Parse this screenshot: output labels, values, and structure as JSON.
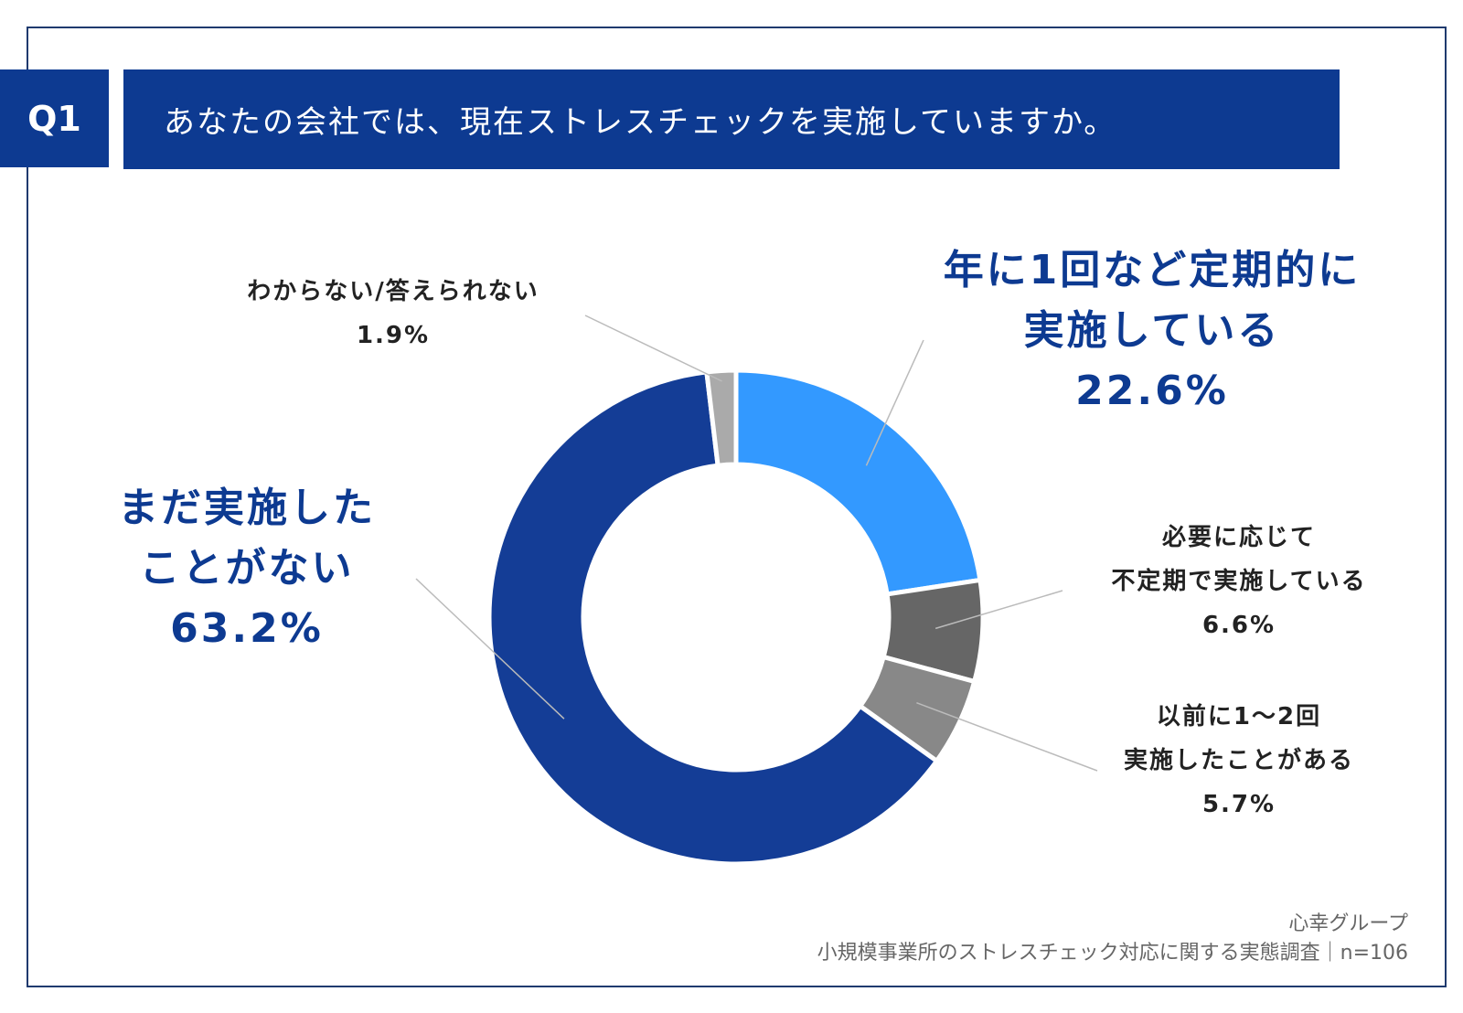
{
  "header": {
    "badge": "Q1",
    "question": "あなたの会社では、現在ストレスチェックを実施していますか。"
  },
  "chart_data": {
    "type": "pie",
    "donut": true,
    "slices": [
      {
        "label_lines": [
          "年に1回など定期的に",
          "実施している"
        ],
        "value": 22.6,
        "value_text": "22.6%",
        "color": "#3399ff"
      },
      {
        "label_lines": [
          "必要に応じて",
          "不定期で実施している"
        ],
        "value": 6.6,
        "value_text": "6.6%",
        "color": "#666666"
      },
      {
        "label_lines": [
          "以前に1〜2回",
          "実施したことがある"
        ],
        "value": 5.7,
        "value_text": "5.7%",
        "color": "#888888"
      },
      {
        "label_lines": [
          "まだ実施した",
          "ことがない"
        ],
        "value": 63.2,
        "value_text": "63.2%",
        "color": "#143d96"
      },
      {
        "label_lines": [
          "わからない/答えられない"
        ],
        "value": 1.9,
        "value_text": "1.9%",
        "color": "#aaaaaa"
      }
    ]
  },
  "source": {
    "line1": "心幸グループ",
    "line2": "小規模事業所のストレスチェック対応に関する実態調査｜n=106"
  }
}
